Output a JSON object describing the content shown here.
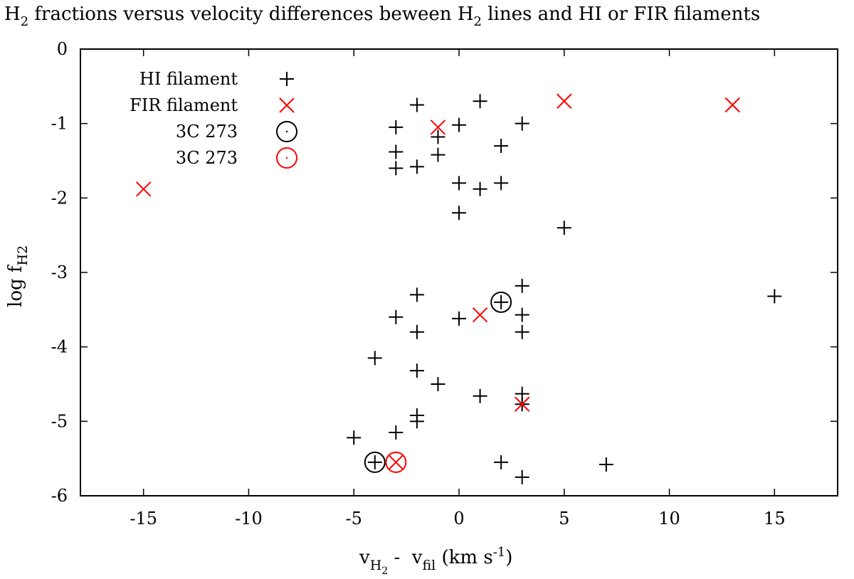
{
  "chart_data": {
    "type": "scatter",
    "title": {
      "prefix": "H",
      "sub1": "2",
      "mid": " fractions versus velocity differences beween H",
      "sub2": "2",
      "suffix": " lines and HI or FIR filaments"
    },
    "xlabel": {
      "v1": "v",
      "s1": "H",
      "s1sub": "2",
      "dash": " -  ",
      "v2": "v",
      "s2": "fil",
      "unit": " (km s",
      "sup": "-1",
      "close": ")"
    },
    "ylabel": {
      "main": "log f",
      "sub": "H2"
    },
    "xlim": [
      -18,
      18
    ],
    "ylim": [
      -6,
      0
    ],
    "xticks": [
      -15,
      -10,
      -5,
      0,
      5,
      10,
      15
    ],
    "yticks": [
      0,
      -1,
      -2,
      -3,
      -4,
      -5,
      -6
    ],
    "legend": {
      "position": "top-left",
      "entries": [
        {
          "label": "HI filament",
          "marker": "plus",
          "color": "#000000"
        },
        {
          "label": "FIR filament",
          "marker": "cross",
          "color": "#ff0000"
        },
        {
          "label": "3C 273",
          "marker": "circle-dot",
          "color": "#000000"
        },
        {
          "label": "3C 273",
          "marker": "circle-dot",
          "color": "#ff0000"
        }
      ]
    },
    "series": [
      {
        "name": "HI filament",
        "marker": "plus",
        "color": "#000000",
        "points": [
          [
            -2,
            -0.75
          ],
          [
            1,
            -0.7
          ],
          [
            -3,
            -1.05
          ],
          [
            0,
            -1.02
          ],
          [
            3,
            -1.0
          ],
          [
            -1,
            -1.18
          ],
          [
            -1,
            -1.42
          ],
          [
            -3,
            -1.38
          ],
          [
            2,
            -1.3
          ],
          [
            -3,
            -1.6
          ],
          [
            -2,
            -1.58
          ],
          [
            0,
            -1.8
          ],
          [
            1,
            -1.88
          ],
          [
            2,
            -1.8
          ],
          [
            0,
            -2.2
          ],
          [
            5,
            -2.4
          ],
          [
            3,
            -3.18
          ],
          [
            -2,
            -3.3
          ],
          [
            15,
            -3.32
          ],
          [
            -3,
            -3.6
          ],
          [
            0,
            -3.62
          ],
          [
            3,
            -3.57
          ],
          [
            -2,
            -3.8
          ],
          [
            3,
            -3.8
          ],
          [
            -4,
            -4.15
          ],
          [
            -2,
            -4.32
          ],
          [
            -1,
            -4.5
          ],
          [
            1,
            -4.66
          ],
          [
            3,
            -4.63
          ],
          [
            3,
            -4.77
          ],
          [
            -2,
            -4.92
          ],
          [
            -2,
            -5.0
          ],
          [
            -3,
            -5.15
          ],
          [
            -5,
            -5.22
          ],
          [
            2,
            -5.55
          ],
          [
            7,
            -5.58
          ],
          [
            3,
            -5.75
          ],
          [
            2,
            -3.4
          ],
          [
            -4,
            -5.55
          ]
        ]
      },
      {
        "name": "FIR filament",
        "marker": "cross",
        "color": "#ff0000",
        "points": [
          [
            5,
            -0.7
          ],
          [
            13,
            -0.75
          ],
          [
            -1,
            -1.05
          ],
          [
            -15,
            -1.88
          ],
          [
            1,
            -3.57
          ],
          [
            3,
            -4.77
          ],
          [
            -3,
            -5.55
          ]
        ]
      },
      {
        "name": "3C 273",
        "marker": "circle-dot",
        "color": "#000000",
        "points": [
          [
            2,
            -3.4
          ],
          [
            -4,
            -5.55
          ]
        ]
      },
      {
        "name": "3C 273",
        "marker": "circle-dot",
        "color": "#ff0000",
        "points": [
          [
            -3,
            -5.55
          ]
        ]
      }
    ]
  }
}
